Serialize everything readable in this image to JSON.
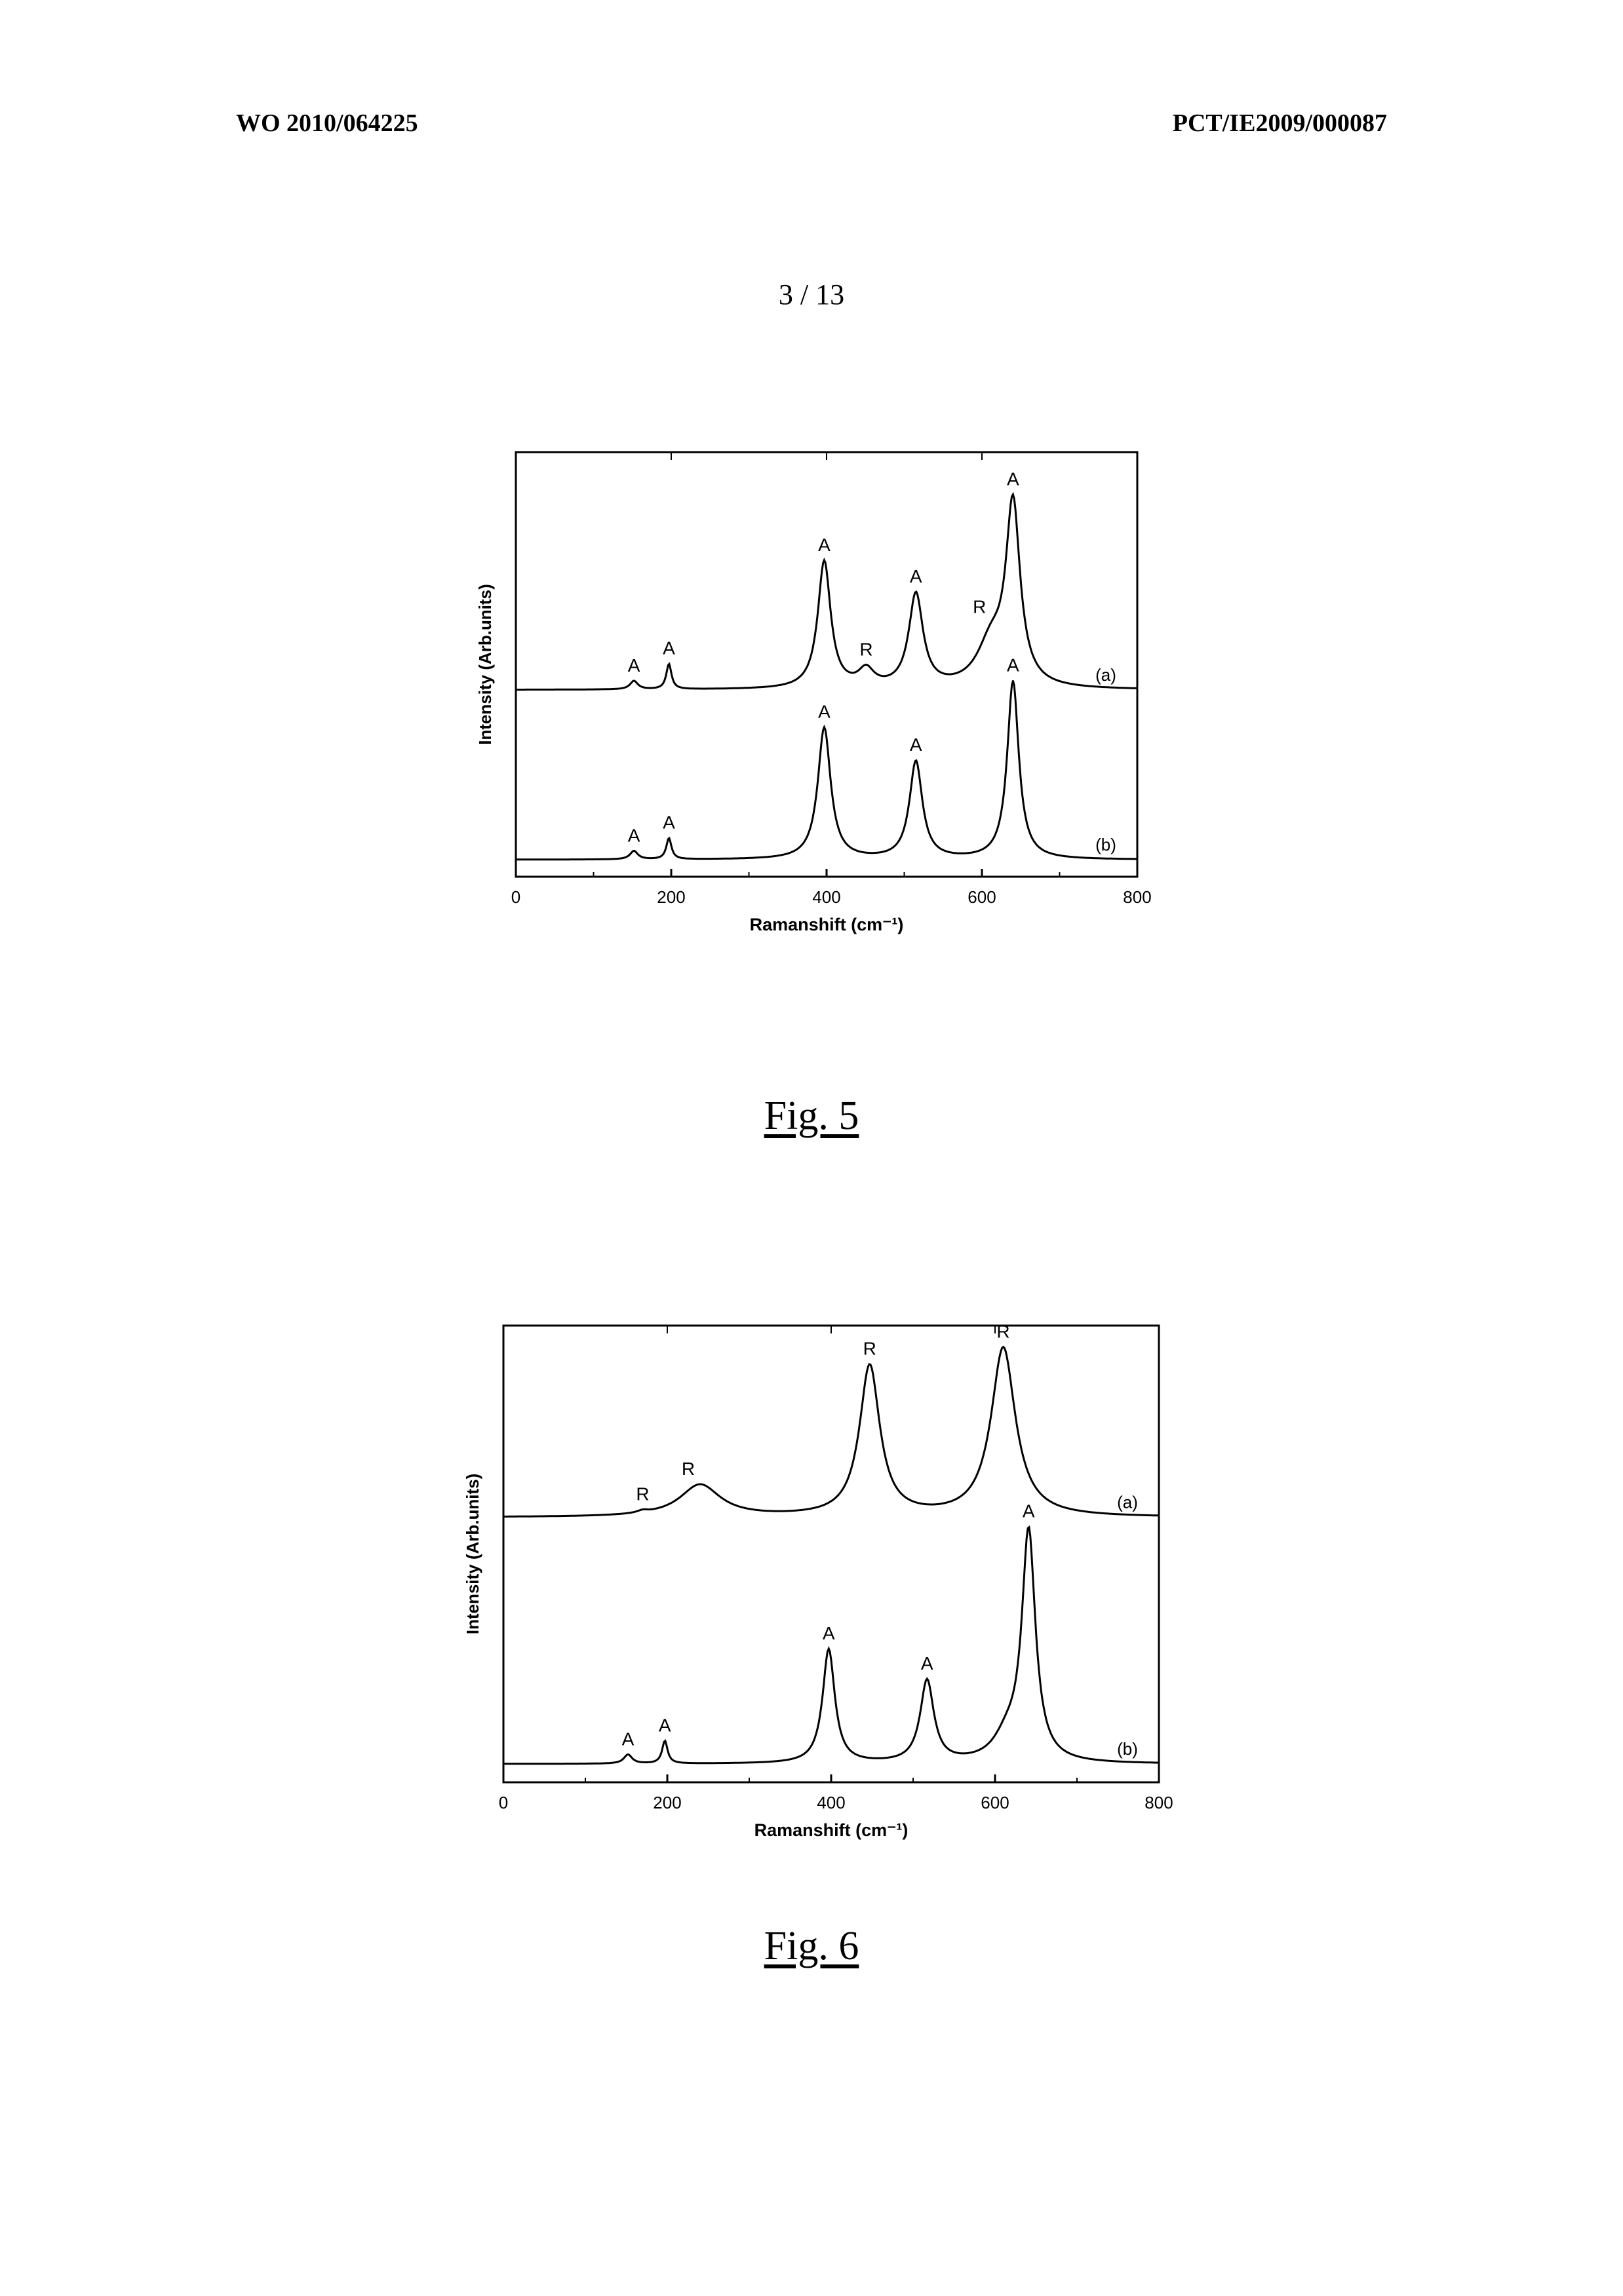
{
  "header": {
    "publication_number": "WO 2010/064225",
    "application_number": "PCT/IE2009/000087"
  },
  "page_number": "3 / 13",
  "chart_data": [
    {
      "id": "fig5",
      "type": "line",
      "caption": "Fig. 5",
      "xlabel": "Ramanshift (cm⁻¹)",
      "ylabel": "Intensity (Arb.units)",
      "xlim": [
        0,
        800
      ],
      "xticks": [
        0,
        200,
        400,
        600,
        800
      ],
      "yticks_shown": false,
      "grid": false,
      "series": [
        {
          "name": "(a)",
          "baseline": 0.44,
          "peaks": [
            {
              "x": 152,
              "height": 0.02,
              "width": 6,
              "label": "A"
            },
            {
              "x": 197,
              "height": 0.06,
              "width": 4,
              "label": "A"
            },
            {
              "x": 397,
              "height": 0.3,
              "width": 10,
              "label": "A"
            },
            {
              "x": 451,
              "height": 0.04,
              "width": 12,
              "label": "R"
            },
            {
              "x": 515,
              "height": 0.22,
              "width": 11,
              "label": "A"
            },
            {
              "x": 612,
              "height": 0.1,
              "width": 22,
              "label": "R"
            },
            {
              "x": 640,
              "height": 0.42,
              "width": 11,
              "label": "A"
            }
          ]
        },
        {
          "name": "(b)",
          "baseline": 0.04,
          "peaks": [
            {
              "x": 152,
              "height": 0.02,
              "width": 6,
              "label": "A"
            },
            {
              "x": 197,
              "height": 0.05,
              "width": 4,
              "label": "A"
            },
            {
              "x": 397,
              "height": 0.31,
              "width": 10,
              "label": "A"
            },
            {
              "x": 515,
              "height": 0.23,
              "width": 10,
              "label": "A"
            },
            {
              "x": 640,
              "height": 0.42,
              "width": 9,
              "label": "A"
            }
          ]
        }
      ]
    },
    {
      "id": "fig6",
      "type": "line",
      "caption": "Fig. 6",
      "xlabel": "Ramanshift (cm⁻¹)",
      "ylabel": "Intensity (Arb.units)",
      "xlim": [
        0,
        800
      ],
      "xticks": [
        0,
        200,
        400,
        600,
        800
      ],
      "yticks_shown": false,
      "grid": false,
      "series": [
        {
          "name": "(a)",
          "baseline": 0.58,
          "peaks": [
            {
              "x": 170,
              "height": 0.005,
              "width": 8,
              "label": "R"
            },
            {
              "x": 240,
              "height": 0.07,
              "width": 30,
              "label": "R"
            },
            {
              "x": 447,
              "height": 0.33,
              "width": 15,
              "label": "R"
            },
            {
              "x": 610,
              "height": 0.37,
              "width": 18,
              "label": "R"
            }
          ]
        },
        {
          "name": "(b)",
          "baseline": 0.04,
          "peaks": [
            {
              "x": 152,
              "height": 0.02,
              "width": 6,
              "label": "A"
            },
            {
              "x": 197,
              "height": 0.05,
              "width": 4,
              "label": "A"
            },
            {
              "x": 397,
              "height": 0.25,
              "width": 9,
              "label": "A"
            },
            {
              "x": 517,
              "height": 0.18,
              "width": 10,
              "label": "A"
            },
            {
              "x": 615,
              "height": 0.05,
              "width": 20,
              "label": ""
            },
            {
              "x": 641,
              "height": 0.5,
              "width": 10,
              "label": "A"
            }
          ]
        }
      ]
    }
  ]
}
